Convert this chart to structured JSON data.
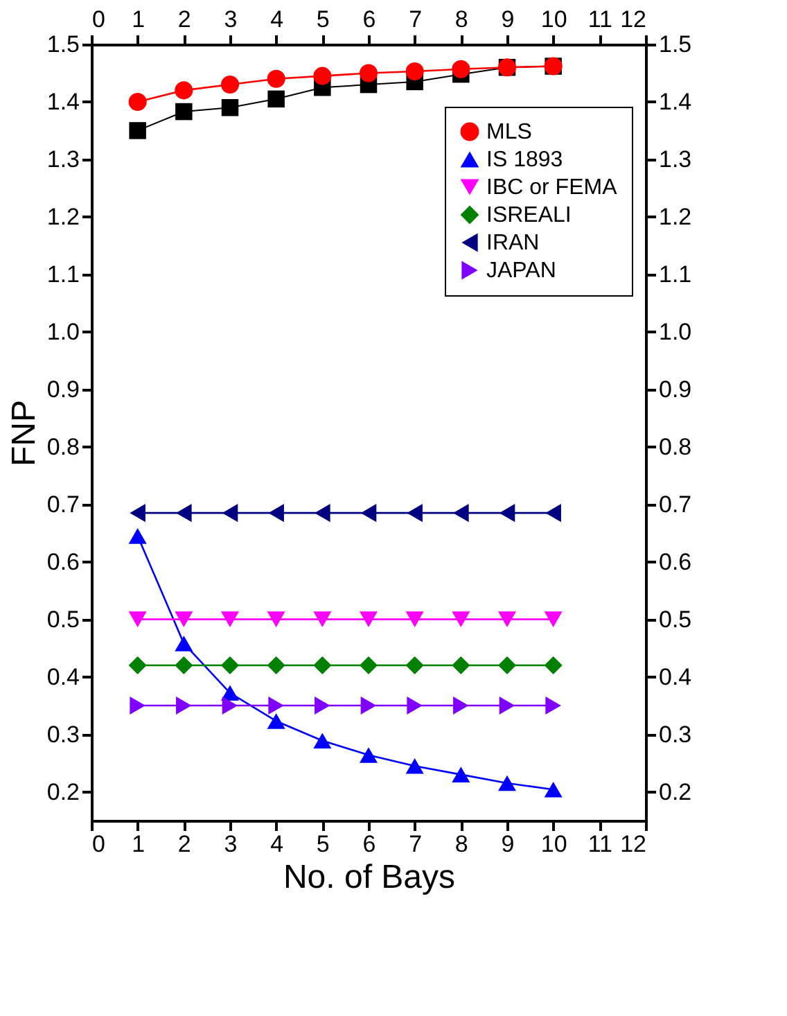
{
  "chart_data": {
    "type": "line",
    "xlabel": "No. of Bays",
    "ylabel": "FNP",
    "x": [
      1,
      2,
      3,
      4,
      5,
      6,
      7,
      8,
      9,
      10
    ],
    "series": [
      {
        "color": "#000000",
        "marker": "square",
        "values": [
          1.35,
          1.383,
          1.39,
          1.405,
          1.425,
          1.43,
          1.435,
          1.448,
          1.46,
          1.462
        ]
      },
      {
        "name": "MLS",
        "color": "#ff0000",
        "marker": "circle",
        "values": [
          1.4,
          1.42,
          1.43,
          1.44,
          1.445,
          1.45,
          1.453,
          1.457,
          1.46,
          1.462
        ]
      },
      {
        "name": "IS 1893",
        "color": "#0000ff",
        "marker": "triangle",
        "values": [
          0.645,
          0.458,
          0.372,
          0.323,
          0.289,
          0.264,
          0.245,
          0.23,
          0.215,
          0.204
        ]
      },
      {
        "name": "IBC or FEMA",
        "color": "#ff00ff",
        "marker": "triangle-down",
        "values": [
          0.5,
          0.5,
          0.5,
          0.5,
          0.5,
          0.5,
          0.5,
          0.5,
          0.5,
          0.5
        ]
      },
      {
        "name": "ISREALI",
        "color": "#008000",
        "marker": "diamond",
        "values": [
          0.42,
          0.42,
          0.42,
          0.42,
          0.42,
          0.42,
          0.42,
          0.42,
          0.42,
          0.42
        ]
      },
      {
        "name": "IRAN",
        "color": "#000080",
        "marker": "triangle-left",
        "values": [
          0.685,
          0.685,
          0.685,
          0.685,
          0.685,
          0.685,
          0.685,
          0.685,
          0.685,
          0.685
        ]
      },
      {
        "name": "JAPAN",
        "color": "#8000ff",
        "marker": "triangle-right",
        "values": [
          0.35,
          0.35,
          0.35,
          0.35,
          0.35,
          0.35,
          0.35,
          0.35,
          0.35,
          0.35
        ]
      }
    ],
    "xlim": [
      0,
      12
    ],
    "xticks": [
      0,
      1,
      2,
      3,
      4,
      5,
      6,
      7,
      8,
      9,
      10,
      11,
      12
    ],
    "x2lim": [
      0,
      12
    ],
    "x2ticks": [
      0,
      1,
      2,
      3,
      4,
      5,
      6,
      7,
      8,
      9,
      10,
      11,
      12
    ],
    "ylim": [
      0.15,
      1.5
    ],
    "yticks": [
      0.2,
      0.3,
      0.4,
      0.5,
      0.6,
      0.7,
      0.8,
      0.9,
      {
        "value": 1,
        "label": "1.0"
      },
      1.1,
      1.2,
      1.3,
      1.4,
      1.5
    ],
    "y2lim": [
      0.15,
      1.5
    ],
    "y2ticks": [
      0.2,
      0.3,
      0.4,
      0.5,
      0.6,
      0.7,
      0.8,
      0.9,
      {
        "value": 1,
        "label": "1.0"
      },
      1.1,
      1.2,
      1.3,
      1.4,
      1.5
    ],
    "grid": false,
    "legend": "top right"
  }
}
